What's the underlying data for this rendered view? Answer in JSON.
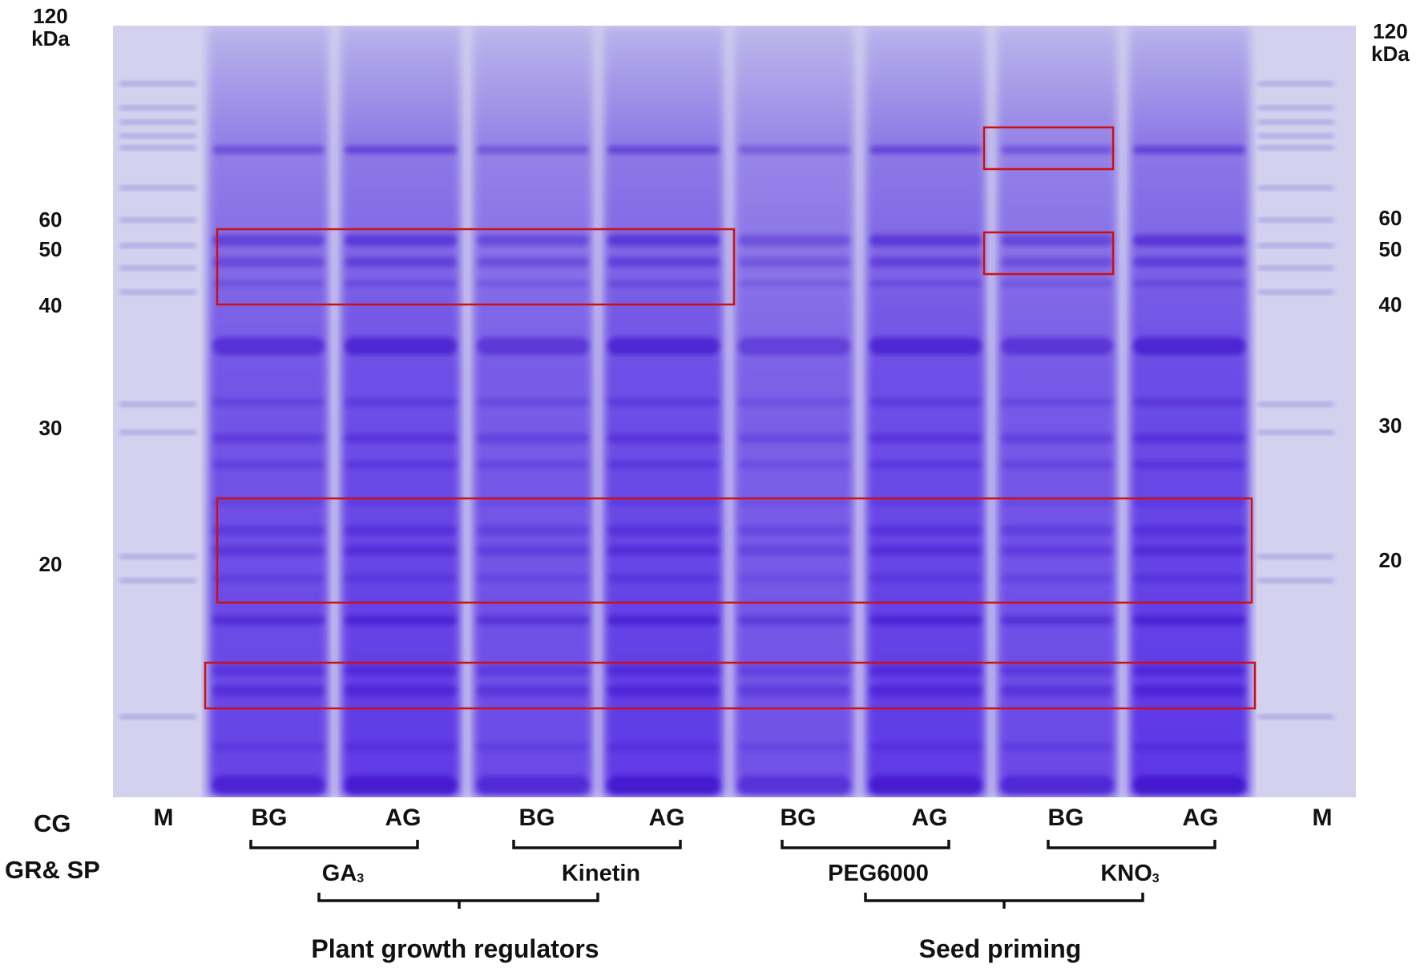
{
  "colors": {
    "gel_background": "#d3d1ee",
    "lane_stain": "#5a34e6",
    "band_stain": "#3a10c8",
    "highlight_box": "#cc1111",
    "text": "#111111"
  },
  "mw_markers": {
    "unit_top": "120",
    "unit_label": "kDa",
    "values": [
      "60",
      "50",
      "40",
      "30",
      "20"
    ]
  },
  "row_labels": {
    "cg": "CG",
    "gr_sp": "GR& SP"
  },
  "lanes": [
    {
      "label": "M",
      "kind": "marker"
    },
    {
      "label": "BG",
      "kind": "sample",
      "intensity": 0.78
    },
    {
      "label": "AG",
      "kind": "sample",
      "intensity": 0.9
    },
    {
      "label": "BG",
      "kind": "sample",
      "intensity": 0.7
    },
    {
      "label": "AG",
      "kind": "sample",
      "intensity": 0.92
    },
    {
      "label": "BG",
      "kind": "sample",
      "intensity": 0.6
    },
    {
      "label": "AG",
      "kind": "sample",
      "intensity": 0.9
    },
    {
      "label": "BG",
      "kind": "sample",
      "intensity": 0.72
    },
    {
      "label": "AG",
      "kind": "sample",
      "intensity": 0.95
    },
    {
      "label": "M",
      "kind": "marker"
    }
  ],
  "treatments": [
    {
      "name": "GA",
      "subscript": "3"
    },
    {
      "name": "Kinetin",
      "subscript": ""
    },
    {
      "name": "PEG6000",
      "subscript": ""
    },
    {
      "name": "KNO",
      "subscript": "3"
    }
  ],
  "groups": [
    "Plant growth  regulators",
    "Seed priming"
  ]
}
